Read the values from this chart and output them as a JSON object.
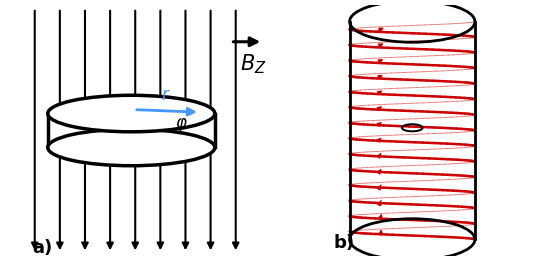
{
  "fig_width": 5.34,
  "fig_height": 2.61,
  "dpi": 100,
  "bg_color": "#ffffff",
  "panel_b_bg": "#b0b8c8",
  "arrow_color": "#000000",
  "bz_arrow_label": "$B_Z$",
  "label_a": "a)",
  "label_b": "b)",
  "disc_color": "#ffffff",
  "disc_edge_color": "#000000",
  "disc_lw": 2.5,
  "coil_color": "#cc0000",
  "cylinder_edge_color": "#000000",
  "cylinder_lw": 2.0,
  "r_label": "$r$",
  "phi_label": "$\\varphi$",
  "arrow_blue": "#4499ff",
  "n_field_lines": 9,
  "n_coil_turns": 14,
  "n_coil_points_per_turn": 60
}
